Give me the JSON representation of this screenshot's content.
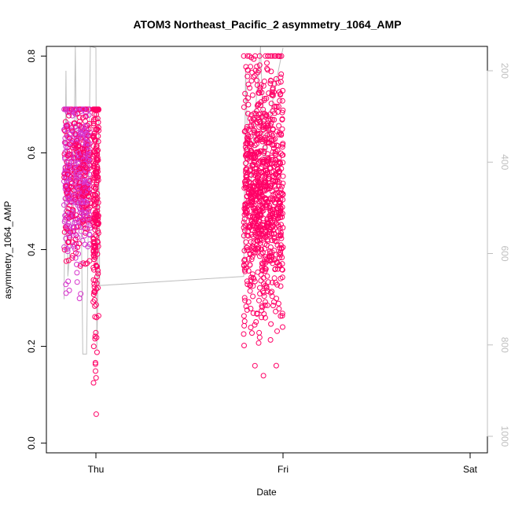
{
  "chart_data": {
    "type": "scatter",
    "title": "ATOM3 Northeast_Pacific_2 asymmetry_1064_AMP",
    "xlabel": "Date",
    "ylabel": "asymmetry_1064_AMP",
    "x_ticks": [
      "Thu",
      "Fri",
      "Sat"
    ],
    "y_ticks": [
      "0.0",
      "0.2",
      "0.4",
      "0.6",
      "0.8"
    ],
    "ylim": [
      -0.02,
      0.82
    ],
    "y2_ticks": [
      "200",
      "400",
      "600",
      "800",
      "1000"
    ],
    "y2_range_top_to_bottom": [
      146,
      1024
    ],
    "xlim_days_from_thu": [
      -0.27,
      0.02
    ],
    "grid": false,
    "colors": {
      "points_early": "#d633cc",
      "points_late": "#ff0066",
      "altitude_line": "#bfbfbf",
      "axes": "#000000"
    },
    "series": [
      {
        "kind": "points",
        "clusters": [
          {
            "day_from": -0.17,
            "day_to": -0.03,
            "y_mean": 0.55,
            "y_sd": 0.09,
            "n": 600,
            "y_min": 0.19,
            "y_max": 0.69
          },
          {
            "day_from": -0.015,
            "day_to": 0.015,
            "y_mean": 0.5,
            "y_sd": 0.15,
            "n": 230,
            "y_min": 0.06,
            "y_max": 0.69
          },
          {
            "day_from": 0.79,
            "day_to": 1.0,
            "y_mean": 0.52,
            "y_sd": 0.13,
            "n": 900,
            "y_min": 0.005,
            "y_max": 0.8
          }
        ]
      },
      {
        "kind": "line",
        "name": "",
        "axis": "right",
        "points": [
          [
            -0.17,
            700
          ],
          [
            -0.16,
            200
          ],
          [
            -0.15,
            650
          ],
          [
            -0.12,
            500
          ],
          [
            -0.11,
            100
          ],
          [
            -0.1,
            500
          ],
          [
            -0.08,
            450
          ],
          [
            -0.07,
            820
          ],
          [
            -0.05,
            820
          ],
          [
            -0.04,
            500
          ],
          [
            -0.03,
            100
          ],
          [
            0.0,
            150
          ],
          [
            0.005,
            810
          ],
          [
            0.01,
            690
          ],
          [
            0.015,
            300
          ],
          [
            0.02,
            670
          ],
          [
            0.79,
            650
          ],
          [
            0.8,
            200
          ],
          [
            0.82,
            500
          ],
          [
            0.85,
            300
          ],
          [
            0.88,
            100
          ],
          [
            0.9,
            400
          ],
          [
            0.95,
            250
          ],
          [
            1.0,
            150
          ]
        ]
      }
    ]
  }
}
